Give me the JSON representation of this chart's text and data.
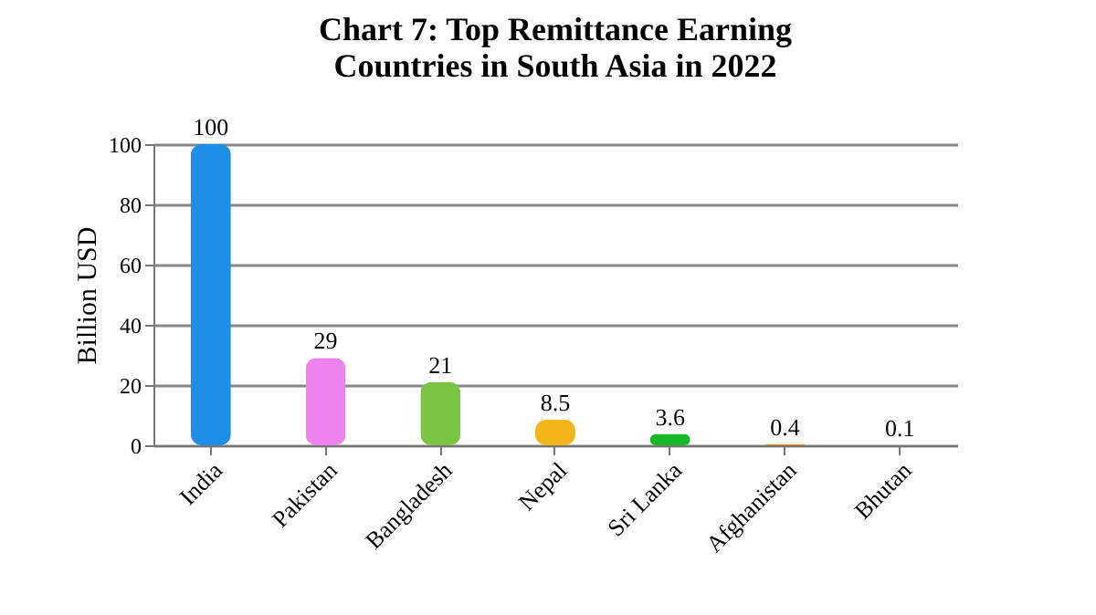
{
  "chart_data": {
    "type": "bar",
    "title": "Chart 7: Top Remittance Earning\nCountries  in South Asia in 2022",
    "ylabel": "Billion USD",
    "categories": [
      "India",
      "Pakistan",
      "Bangladesh",
      "Nepal",
      "Sri Lanka",
      "Afghanistan",
      "Bhutan"
    ],
    "values": [
      100,
      29,
      21,
      8.5,
      3.6,
      0.4,
      0.1
    ],
    "colors": [
      "#1e8fe6",
      "#ee82ee",
      "#7cc443",
      "#f2b51a",
      "#18b828",
      "#e08a10",
      "#3a6aa8"
    ],
    "ylim": [
      0,
      100
    ],
    "yticks": [
      0,
      20,
      40,
      60,
      80,
      100
    ],
    "grid": "y",
    "data_labels": true
  }
}
